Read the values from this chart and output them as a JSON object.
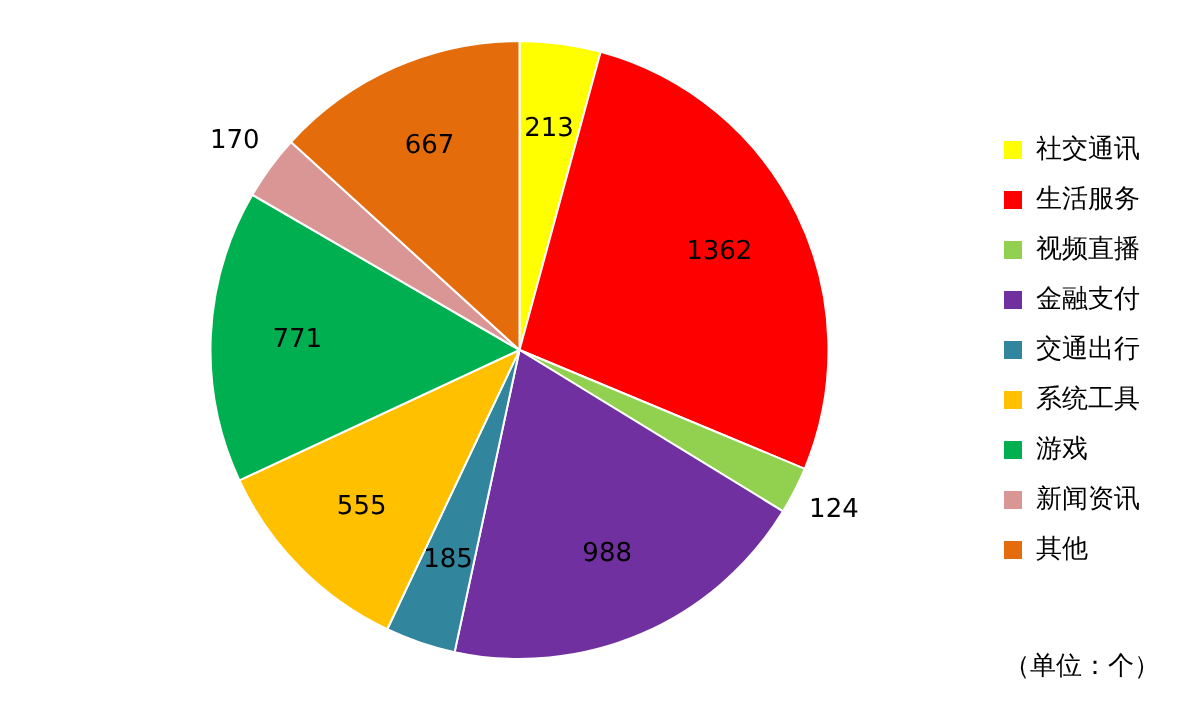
{
  "chart_data": {
    "type": "pie",
    "categories": [
      "社交通讯",
      "生活服务",
      "视频直播",
      "金融支付",
      "交通出行",
      "系统工具",
      "游戏",
      "新闻资讯",
      "其他"
    ],
    "values": [
      213,
      1362,
      124,
      988,
      185,
      555,
      771,
      170,
      667
    ],
    "colors": [
      "#ffff00",
      "#ff0000",
      "#92d050",
      "#7030a0",
      "#31859c",
      "#ffc000",
      "#00b050",
      "#d99694",
      "#e46c0a"
    ],
    "data_labels": true,
    "legend": "right",
    "annotations": [
      "（单位：个）"
    ]
  }
}
